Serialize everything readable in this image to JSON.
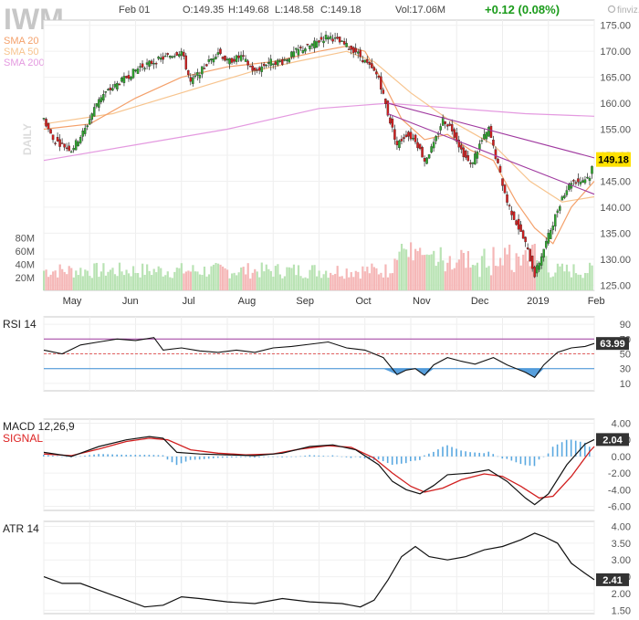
{
  "header": {
    "ticker": "IWM",
    "date": "Feb 01",
    "open": "O:149.35",
    "high": "H:149.68",
    "low": "L:148.58",
    "close": "C:149.18",
    "volume": "Vol:17.06M",
    "change": "+0.12 (0.08%)",
    "brand": "finviz.com",
    "change_color": "#1a9b1a"
  },
  "chart_data": [
    {
      "type": "candlestick",
      "title": "IWM",
      "side_label": "DAILY",
      "legend": [
        {
          "name": "SMA 20",
          "color": "#f4a06a"
        },
        {
          "name": "SMA 50",
          "color": "#f7c48e"
        },
        {
          "name": "SMA 200",
          "color": "#e49ae0"
        }
      ],
      "current_price": "149.18",
      "ylim": [
        124,
        176
      ],
      "y_ticks": [
        "125.00",
        "130.00",
        "135.00",
        "140.00",
        "145.00",
        "150.00",
        "155.00",
        "160.00",
        "165.00",
        "170.00",
        "175.00"
      ],
      "x_labels": [
        "May",
        "Jun",
        "Jul",
        "Aug",
        "Sep",
        "Oct",
        "Nov",
        "Dec",
        "2019",
        "Feb"
      ],
      "volume_ticks": [
        "20M",
        "40M",
        "60M",
        "80M"
      ],
      "close_path": [
        [
          0,
          157
        ],
        [
          4,
          153
        ],
        [
          8,
          152
        ],
        [
          12,
          151
        ],
        [
          18,
          155
        ],
        [
          24,
          161
        ],
        [
          30,
          163
        ],
        [
          36,
          165
        ],
        [
          42,
          167
        ],
        [
          48,
          168
        ],
        [
          54,
          169
        ],
        [
          60,
          170
        ],
        [
          64,
          164
        ],
        [
          68,
          166
        ],
        [
          72,
          168
        ],
        [
          76,
          170
        ],
        [
          80,
          168
        ],
        [
          86,
          169
        ],
        [
          92,
          166
        ],
        [
          98,
          168
        ],
        [
          104,
          168
        ],
        [
          110,
          170
        ],
        [
          116,
          171
        ],
        [
          120,
          172
        ],
        [
          124,
          173
        ],
        [
          128,
          172
        ],
        [
          132,
          171
        ],
        [
          136,
          170
        ],
        [
          140,
          168
        ],
        [
          146,
          165
        ],
        [
          150,
          158
        ],
        [
          154,
          152
        ],
        [
          158,
          154
        ],
        [
          162,
          153
        ],
        [
          166,
          149
        ],
        [
          170,
          152
        ],
        [
          174,
          157
        ],
        [
          178,
          155
        ],
        [
          182,
          151
        ],
        [
          186,
          148
        ],
        [
          190,
          152
        ],
        [
          194,
          155
        ],
        [
          198,
          148
        ],
        [
          202,
          141
        ],
        [
          206,
          137
        ],
        [
          210,
          133
        ],
        [
          214,
          127
        ],
        [
          218,
          132
        ],
        [
          222,
          137
        ],
        [
          226,
          142
        ],
        [
          230,
          145
        ],
        [
          234,
          145
        ],
        [
          238,
          146
        ],
        [
          240,
          149.2
        ]
      ],
      "sma20": [
        [
          0,
          155
        ],
        [
          20,
          156
        ],
        [
          40,
          161
        ],
        [
          60,
          165
        ],
        [
          80,
          167
        ],
        [
          100,
          168
        ],
        [
          120,
          170
        ],
        [
          132,
          171
        ],
        [
          140,
          170
        ],
        [
          148,
          164
        ],
        [
          156,
          157
        ],
        [
          166,
          153
        ],
        [
          176,
          154
        ],
        [
          186,
          151
        ],
        [
          196,
          149
        ],
        [
          206,
          141
        ],
        [
          214,
          136
        ],
        [
          222,
          133
        ],
        [
          230,
          140
        ],
        [
          236,
          143
        ],
        [
          240,
          145
        ]
      ],
      "sma50": [
        [
          0,
          156
        ],
        [
          30,
          158
        ],
        [
          60,
          162
        ],
        [
          90,
          166
        ],
        [
          110,
          168
        ],
        [
          132,
          170
        ],
        [
          144,
          168
        ],
        [
          160,
          162
        ],
        [
          176,
          157
        ],
        [
          196,
          152
        ],
        [
          212,
          145
        ],
        [
          226,
          141
        ],
        [
          240,
          142
        ]
      ],
      "sma200": [
        [
          0,
          149
        ],
        [
          40,
          152
        ],
        [
          80,
          155
        ],
        [
          120,
          159
        ],
        [
          150,
          160
        ],
        [
          180,
          159
        ],
        [
          210,
          158
        ],
        [
          240,
          157.5
        ]
      ],
      "trendlines": [
        {
          "from": [
            150,
            160
          ],
          "to": [
            240,
            149.5
          ]
        },
        {
          "from": [
            150,
            158
          ],
          "to": [
            240,
            142.5
          ]
        }
      ]
    },
    {
      "type": "line",
      "title": "RSI 14",
      "current_value": "63.99",
      "ylim": [
        0,
        100
      ],
      "y_ticks": [
        "10",
        "30",
        "50",
        "70",
        "90"
      ],
      "overbought": 70,
      "oversold": 30,
      "midline": 50,
      "values": [
        [
          0,
          55
        ],
        [
          8,
          50
        ],
        [
          16,
          62
        ],
        [
          24,
          66
        ],
        [
          32,
          70
        ],
        [
          40,
          68
        ],
        [
          48,
          72
        ],
        [
          52,
          55
        ],
        [
          60,
          58
        ],
        [
          68,
          54
        ],
        [
          76,
          52
        ],
        [
          84,
          55
        ],
        [
          92,
          52
        ],
        [
          100,
          58
        ],
        [
          108,
          60
        ],
        [
          116,
          63
        ],
        [
          124,
          66
        ],
        [
          132,
          58
        ],
        [
          140,
          55
        ],
        [
          148,
          45
        ],
        [
          154,
          22
        ],
        [
          158,
          28
        ],
        [
          162,
          30
        ],
        [
          166,
          21
        ],
        [
          170,
          35
        ],
        [
          176,
          45
        ],
        [
          182,
          40
        ],
        [
          188,
          36
        ],
        [
          196,
          45
        ],
        [
          202,
          35
        ],
        [
          206,
          30
        ],
        [
          210,
          25
        ],
        [
          214,
          18
        ],
        [
          218,
          35
        ],
        [
          224,
          52
        ],
        [
          230,
          58
        ],
        [
          236,
          60
        ],
        [
          240,
          64
        ]
      ]
    },
    {
      "type": "line",
      "title": "MACD 12,26,9",
      "series_names": [
        "MACD 12,26,9",
        "SIGNAL"
      ],
      "current_value": "2.04",
      "ylim": [
        -6.5,
        4.5
      ],
      "y_ticks": [
        "-6.00",
        "-4.00",
        "-2.00",
        "0.00",
        "2.00",
        "4.00"
      ],
      "macd": [
        [
          0,
          0.5
        ],
        [
          12,
          0
        ],
        [
          24,
          1.2
        ],
        [
          36,
          2
        ],
        [
          46,
          2.4
        ],
        [
          52,
          2.2
        ],
        [
          58,
          0.5
        ],
        [
          68,
          0.3
        ],
        [
          80,
          0.2
        ],
        [
          92,
          0.1
        ],
        [
          104,
          0.4
        ],
        [
          116,
          1.2
        ],
        [
          126,
          1.4
        ],
        [
          136,
          0.8
        ],
        [
          146,
          -1
        ],
        [
          152,
          -3
        ],
        [
          158,
          -4
        ],
        [
          164,
          -4.5
        ],
        [
          170,
          -3.5
        ],
        [
          176,
          -2.2
        ],
        [
          186,
          -2
        ],
        [
          194,
          -1.6
        ],
        [
          202,
          -3
        ],
        [
          210,
          -5
        ],
        [
          214,
          -5.8
        ],
        [
          220,
          -4.5
        ],
        [
          228,
          -1
        ],
        [
          236,
          1.5
        ],
        [
          240,
          2.04
        ]
      ],
      "signal": [
        [
          0,
          0.3
        ],
        [
          12,
          0.1
        ],
        [
          24,
          0.9
        ],
        [
          36,
          1.8
        ],
        [
          46,
          2.2
        ],
        [
          54,
          2
        ],
        [
          64,
          0.8
        ],
        [
          76,
          0.4
        ],
        [
          88,
          0.2
        ],
        [
          100,
          0.3
        ],
        [
          112,
          0.9
        ],
        [
          124,
          1.3
        ],
        [
          134,
          1.1
        ],
        [
          144,
          -0.2
        ],
        [
          152,
          -2
        ],
        [
          160,
          -3.6
        ],
        [
          166,
          -4.3
        ],
        [
          174,
          -3.8
        ],
        [
          182,
          -2.8
        ],
        [
          192,
          -2.1
        ],
        [
          200,
          -2.4
        ],
        [
          208,
          -3.6
        ],
        [
          216,
          -5
        ],
        [
          222,
          -4.8
        ],
        [
          230,
          -2.4
        ],
        [
          238,
          0.6
        ],
        [
          240,
          1.2
        ]
      ]
    },
    {
      "type": "line",
      "title": "ATR 14",
      "current_value": "2.41",
      "ylim": [
        1.4,
        4.15
      ],
      "y_ticks": [
        "1.50",
        "2.00",
        "2.50",
        "3.00",
        "3.50",
        "4.00"
      ],
      "values": [
        [
          0,
          2.5
        ],
        [
          8,
          2.3
        ],
        [
          16,
          2.3
        ],
        [
          24,
          2.1
        ],
        [
          32,
          1.9
        ],
        [
          44,
          1.6
        ],
        [
          52,
          1.65
        ],
        [
          60,
          1.9
        ],
        [
          68,
          1.85
        ],
        [
          80,
          1.75
        ],
        [
          92,
          1.7
        ],
        [
          104,
          1.85
        ],
        [
          116,
          1.75
        ],
        [
          130,
          1.7
        ],
        [
          138,
          1.6
        ],
        [
          144,
          1.8
        ],
        [
          150,
          2.4
        ],
        [
          156,
          3.1
        ],
        [
          162,
          3.4
        ],
        [
          168,
          3.1
        ],
        [
          176,
          3.0
        ],
        [
          184,
          3.1
        ],
        [
          192,
          3.3
        ],
        [
          200,
          3.4
        ],
        [
          208,
          3.6
        ],
        [
          214,
          3.8
        ],
        [
          218,
          3.7
        ],
        [
          224,
          3.5
        ],
        [
          230,
          2.9
        ],
        [
          236,
          2.6
        ],
        [
          240,
          2.41
        ]
      ]
    }
  ]
}
